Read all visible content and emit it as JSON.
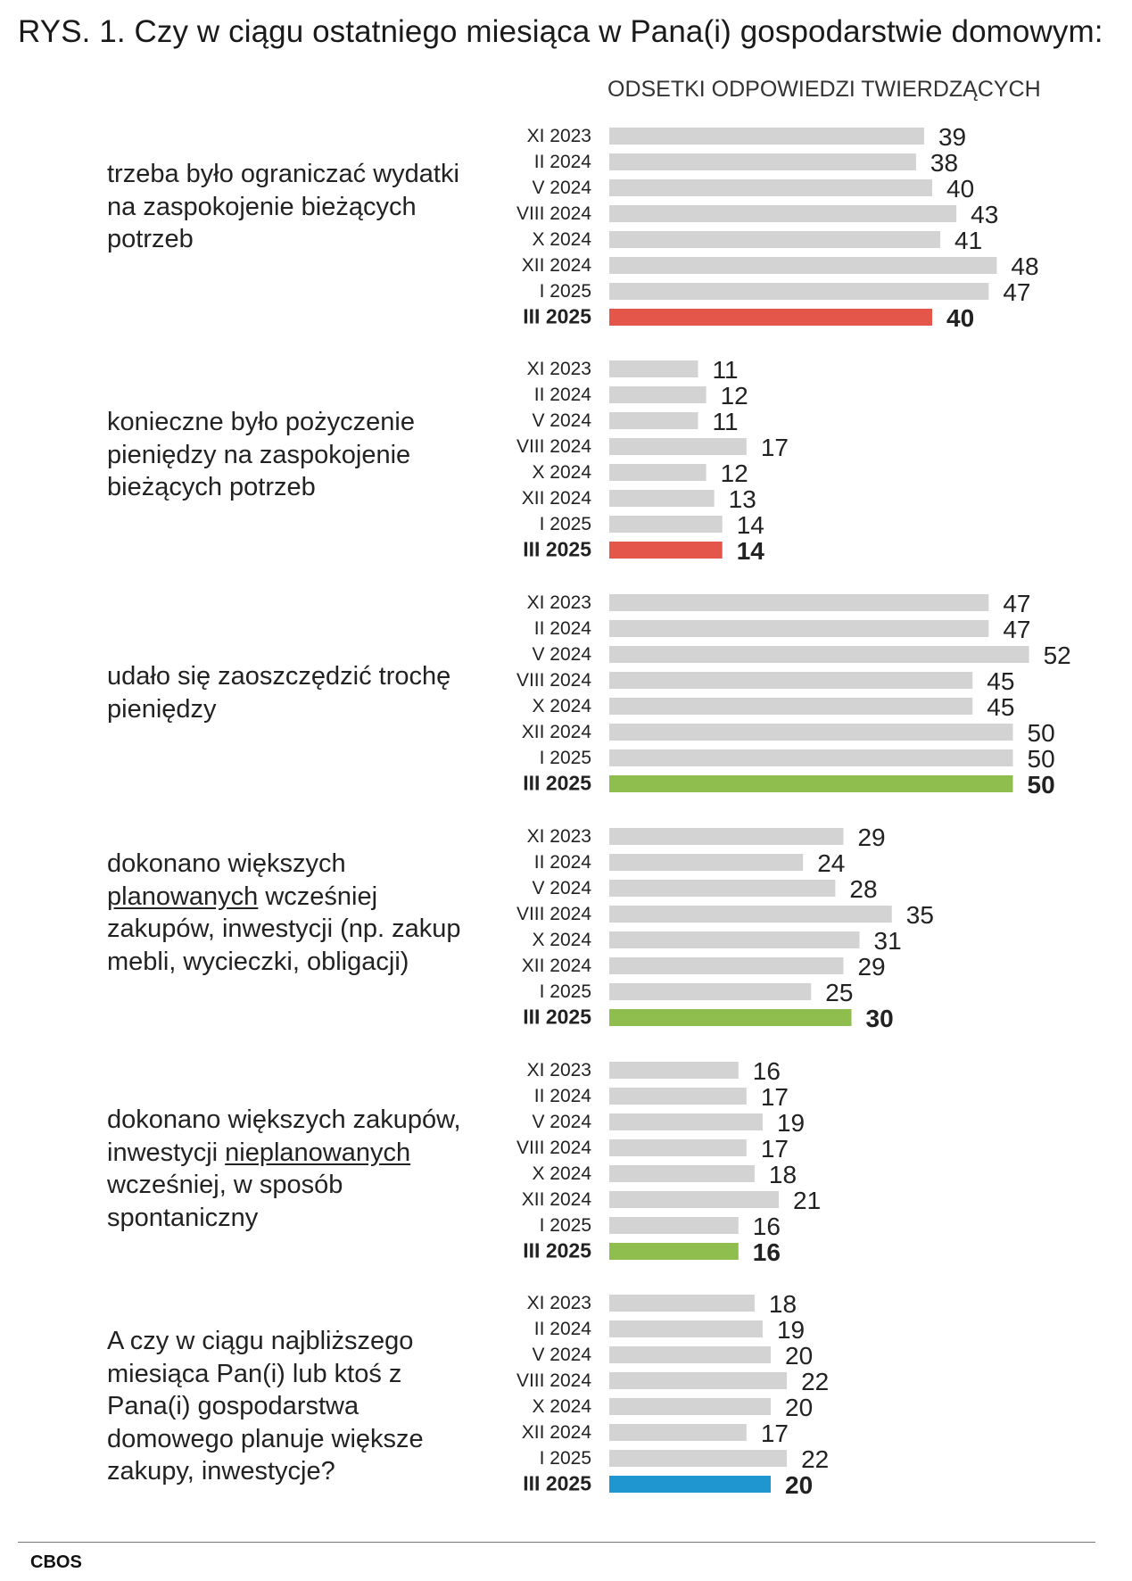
{
  "title": "RYS. 1. Czy w ciągu ostatniego miesiąca w Pana(i) gospodarstwie domowym:",
  "subtitle": "ODSETKI ODPOWIEDZI TWIERDZĄCYCH",
  "source": "CBOS",
  "colors": {
    "grey": "#d3d3d3",
    "red": "#e5564a",
    "green": "#8fbd4e",
    "blue": "#1f96cf"
  },
  "chart_data": {
    "type": "bar",
    "orientation": "horizontal",
    "xlim": [
      0,
      100
    ],
    "categories": [
      "XI 2023",
      "II 2024",
      "V 2024",
      "VIII 2024",
      "X 2024",
      "XII 2024",
      "I 2025",
      "III 2025"
    ],
    "groups": [
      {
        "label_parts": [
          {
            "text": "trzeba było ograniczać wydatki na zaspokojenie bieżących potrzeb"
          }
        ],
        "values": [
          39,
          38,
          40,
          43,
          41,
          48,
          47,
          40
        ],
        "highlight_color": "red"
      },
      {
        "label_parts": [
          {
            "text": "konieczne było pożyczenie pieniędzy na zaspokojenie bieżących potrzeb"
          }
        ],
        "values": [
          11,
          12,
          11,
          17,
          12,
          13,
          14,
          14
        ],
        "highlight_color": "red"
      },
      {
        "label_parts": [
          {
            "text": "udało się zaoszczędzić trochę pieniędzy"
          }
        ],
        "values": [
          47,
          47,
          52,
          45,
          45,
          50,
          50,
          50
        ],
        "highlight_color": "green"
      },
      {
        "label_parts": [
          {
            "text": "dokonano większych "
          },
          {
            "text": "planowanych",
            "underline": true
          },
          {
            "text": " wcześniej zakupów, inwestycji (np. zakup mebli, wycieczki, obligacji)"
          }
        ],
        "values": [
          29,
          24,
          28,
          35,
          31,
          29,
          25,
          30
        ],
        "highlight_color": "green"
      },
      {
        "label_parts": [
          {
            "text": "dokonano większych zakupów, inwestycji "
          },
          {
            "text": "nieplanowanych",
            "underline": true
          },
          {
            "text": " wcześniej, w sposób spontaniczny"
          }
        ],
        "values": [
          16,
          17,
          19,
          17,
          18,
          21,
          16,
          16
        ],
        "highlight_color": "green"
      },
      {
        "label_parts": [
          {
            "text": "A czy w ciągu najbliższego miesiąca Pan(i) lub ktoś z Pana(i) gospodarstwa domowego planuje większe zakupy, inwestycje?"
          }
        ],
        "values": [
          18,
          19,
          20,
          22,
          20,
          17,
          22,
          20
        ],
        "highlight_color": "blue"
      }
    ]
  }
}
